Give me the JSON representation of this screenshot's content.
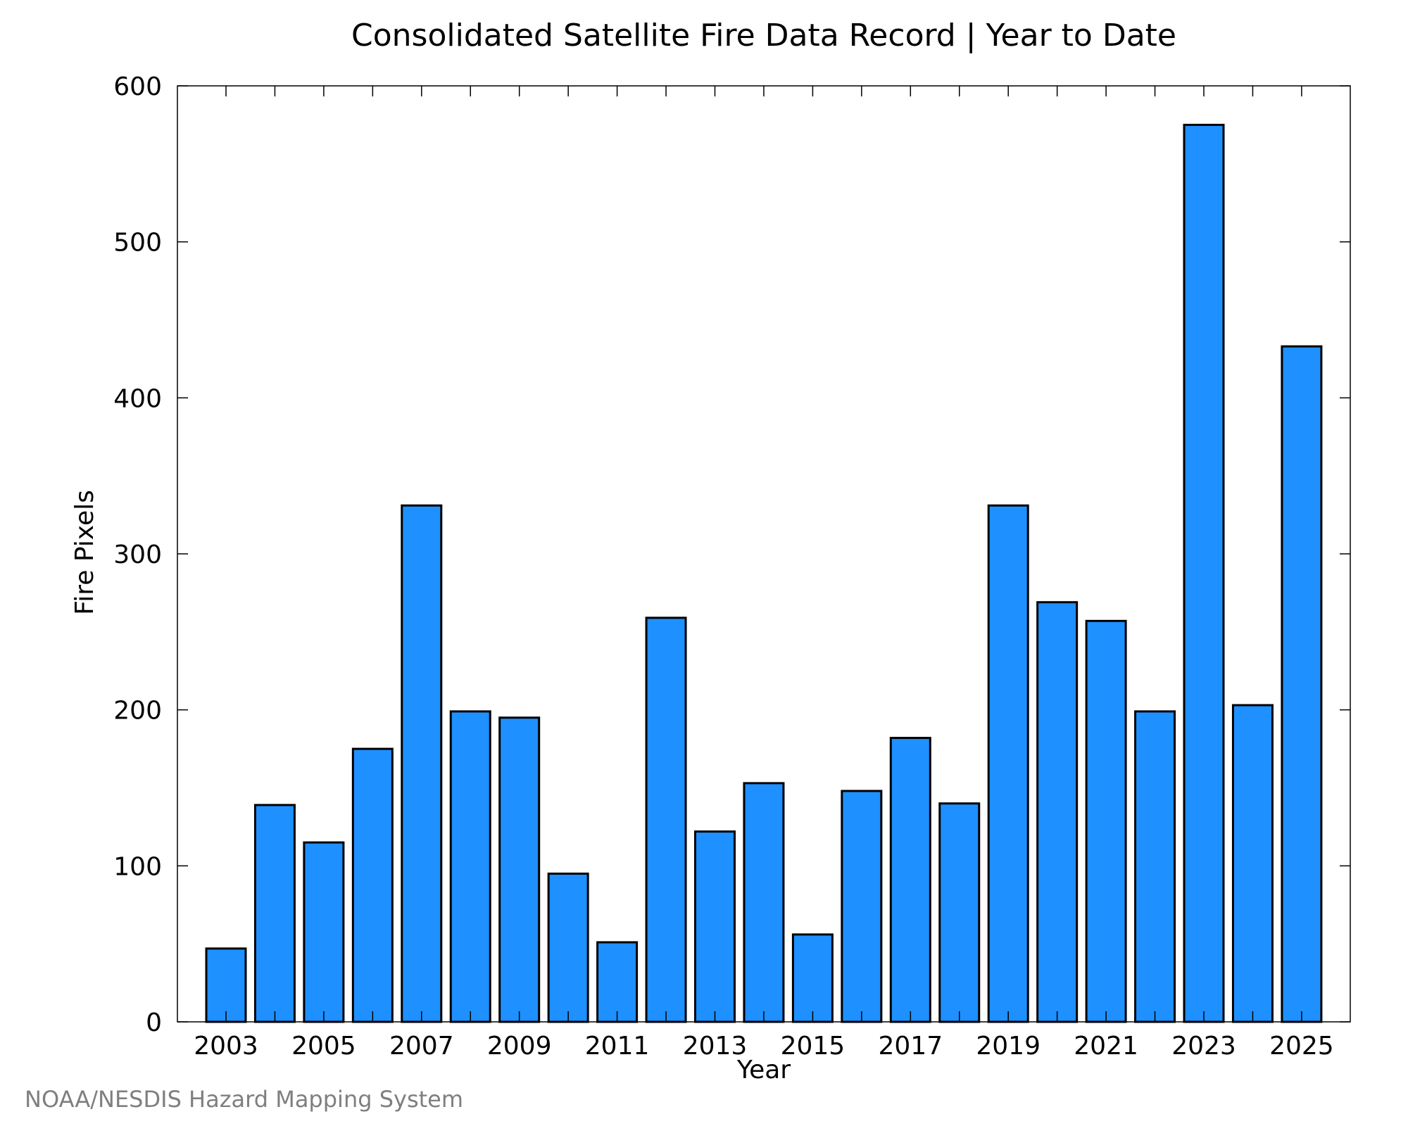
{
  "chart_data": {
    "type": "bar",
    "title": "Consolidated Satellite Fire Data Record | Year to Date",
    "xlabel": "Year",
    "ylabel": "Fire Pixels",
    "categories": [
      "2003",
      "2004",
      "2005",
      "2006",
      "2007",
      "2008",
      "2009",
      "2010",
      "2011",
      "2012",
      "2013",
      "2014",
      "2015",
      "2016",
      "2017",
      "2018",
      "2019",
      "2020",
      "2021",
      "2022",
      "2023",
      "2024",
      "2025"
    ],
    "values": [
      47,
      139,
      115,
      175,
      331,
      199,
      195,
      95,
      51,
      259,
      122,
      153,
      56,
      148,
      182,
      140,
      331,
      269,
      257,
      199,
      575,
      203,
      433
    ],
    "x_tick_labels": [
      "2003",
      "2005",
      "2007",
      "2009",
      "2011",
      "2013",
      "2015",
      "2017",
      "2019",
      "2021",
      "2023",
      "2025"
    ],
    "y_ticks": [
      0,
      100,
      200,
      300,
      400,
      500,
      600
    ],
    "ylim": [
      0,
      600
    ],
    "grid": false,
    "bar_color": "#1e90ff",
    "bar_edge_color": "#000000",
    "source": "NOAA/NESDIS Hazard Mapping System"
  }
}
